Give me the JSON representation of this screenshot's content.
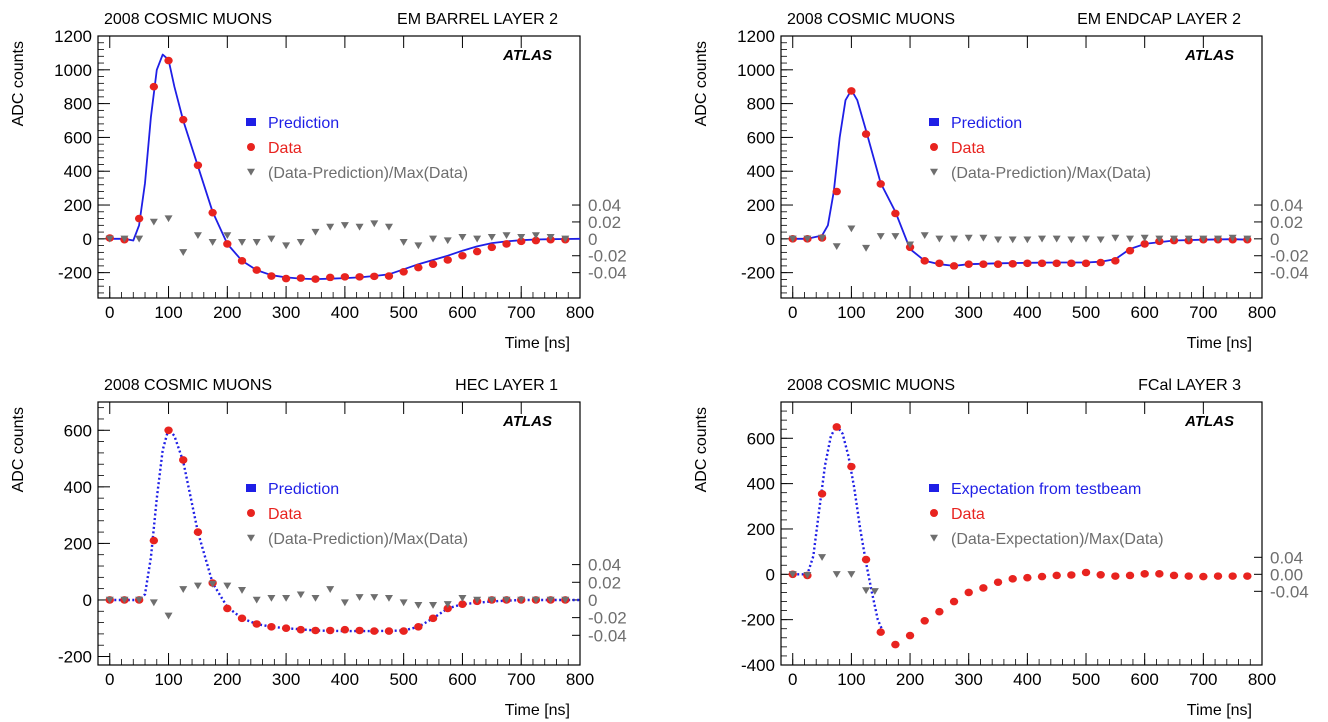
{
  "colors": {
    "prediction": "#1f1fe6",
    "data": "#e8231f",
    "residual": "#6e6e6e",
    "axis": "#000000"
  },
  "chart_data": [
    {
      "type": "scatter",
      "header_left": "2008 COSMIC MUONS",
      "header_right": "EM BARREL LAYER 2",
      "watermark": "ATLAS",
      "xlabel": "Time [ns]",
      "ylabel": "ADC counts",
      "xlim": [
        -20,
        800
      ],
      "ylim": [
        -350,
        1200
      ],
      "x_ticks": [
        0,
        100,
        200,
        300,
        400,
        500,
        600,
        700,
        800
      ],
      "y_ticks": [
        -200,
        0,
        200,
        400,
        600,
        800,
        1000,
        1200
      ],
      "right_ticks": [
        "0.04",
        "0.02",
        "0",
        "-0.02",
        "-0.04"
      ],
      "right_tick_values": [
        0.04,
        0.02,
        0,
        -0.02,
        -0.04
      ],
      "residual_scale": 0.04,
      "residual_zero_adc": 0,
      "residual_unit_adc": 200,
      "legend": [
        {
          "label": "Prediction",
          "marker": "square",
          "color": "#1f1fe6"
        },
        {
          "label": "Data",
          "marker": "circle",
          "color": "#e8231f"
        },
        {
          "label": "(Data-Prediction)/Max(Data)",
          "marker": "triangle",
          "color": "#6e6e6e"
        }
      ],
      "series": [
        {
          "name": "Prediction",
          "kind": "line",
          "x": [
            0,
            25,
            40,
            50,
            60,
            70,
            80,
            90,
            100,
            110,
            125,
            150,
            175,
            200,
            225,
            250,
            275,
            300,
            325,
            350,
            375,
            400,
            425,
            450,
            475,
            500,
            525,
            550,
            575,
            600,
            625,
            650,
            675,
            700,
            725,
            750,
            775,
            800
          ],
          "y": [
            0,
            0,
            -10,
            80,
            330,
            720,
            1000,
            1090,
            1060,
            900,
            700,
            430,
            160,
            -30,
            -130,
            -185,
            -215,
            -228,
            -235,
            -238,
            -236,
            -232,
            -228,
            -220,
            -210,
            -180,
            -150,
            -125,
            -100,
            -70,
            -45,
            -25,
            -15,
            -8,
            -4,
            -2,
            -1,
            0
          ]
        },
        {
          "name": "Data",
          "kind": "points",
          "x": [
            0,
            25,
            50,
            75,
            100,
            125,
            150,
            175,
            200,
            225,
            250,
            275,
            300,
            325,
            350,
            375,
            400,
            425,
            450,
            475,
            500,
            525,
            550,
            575,
            600,
            625,
            650,
            675,
            700,
            725,
            750,
            775
          ],
          "y": [
            5,
            -5,
            120,
            900,
            1055,
            705,
            435,
            155,
            -30,
            -130,
            -185,
            -220,
            -235,
            -232,
            -238,
            -228,
            -225,
            -225,
            -222,
            -220,
            -195,
            -170,
            -150,
            -125,
            -100,
            -75,
            -50,
            -30,
            -15,
            -10,
            -5,
            -5
          ]
        },
        {
          "name": "(Data-Prediction)/Max(Data)",
          "kind": "residual",
          "x": [
            0,
            25,
            50,
            75,
            100,
            125,
            150,
            175,
            200,
            225,
            250,
            275,
            300,
            325,
            350,
            375,
            400,
            425,
            450,
            475,
            500,
            525,
            550,
            575,
            600,
            625,
            650,
            675,
            700,
            725,
            750,
            775
          ],
          "y": [
            0.0,
            0.0,
            0.0,
            0.02,
            0.024,
            -0.016,
            0.004,
            -0.004,
            0.004,
            -0.004,
            -0.004,
            0.0,
            -0.008,
            -0.004,
            0.008,
            0.014,
            0.016,
            0.014,
            0.018,
            0.014,
            -0.004,
            -0.008,
            0.0,
            -0.002,
            0.002,
            0.0,
            0.002,
            0.004,
            0.002,
            0.004,
            0.002,
            0.0
          ]
        }
      ]
    },
    {
      "type": "scatter",
      "header_left": "2008 COSMIC MUONS",
      "header_right": "EM ENDCAP LAYER 2",
      "watermark": "ATLAS",
      "xlabel": "Time [ns]",
      "ylabel": "ADC counts",
      "xlim": [
        -20,
        800
      ],
      "ylim": [
        -350,
        1200
      ],
      "x_ticks": [
        0,
        100,
        200,
        300,
        400,
        500,
        600,
        700,
        800
      ],
      "y_ticks": [
        -200,
        0,
        200,
        400,
        600,
        800,
        1000,
        1200
      ],
      "right_ticks": [
        "0.04",
        "0.02",
        "0",
        "-0.02",
        "-0.04"
      ],
      "right_tick_values": [
        0.04,
        0.02,
        0,
        -0.02,
        -0.04
      ],
      "residual_scale": 0.04,
      "residual_zero_adc": 0,
      "residual_unit_adc": 200,
      "legend": [
        {
          "label": "Prediction",
          "marker": "square",
          "color": "#1f1fe6"
        },
        {
          "label": "Data",
          "marker": "circle",
          "color": "#e8231f"
        },
        {
          "label": "(Data-Prediction)/Max(Data)",
          "marker": "triangle",
          "color": "#6e6e6e"
        }
      ],
      "series": [
        {
          "name": "Prediction",
          "kind": "line",
          "x": [
            0,
            25,
            50,
            60,
            70,
            80,
            90,
            100,
            110,
            125,
            150,
            175,
            200,
            225,
            250,
            275,
            300,
            350,
            400,
            450,
            500,
            525,
            550,
            575,
            600,
            650,
            700,
            750,
            775
          ],
          "y": [
            0,
            0,
            20,
            80,
            280,
            600,
            820,
            880,
            820,
            640,
            330,
            160,
            -60,
            -130,
            -150,
            -160,
            -150,
            -145,
            -142,
            -140,
            -140,
            -135,
            -120,
            -60,
            -30,
            -10,
            -5,
            -2,
            -5
          ]
        },
        {
          "name": "Data",
          "kind": "points",
          "x": [
            0,
            25,
            50,
            75,
            100,
            125,
            150,
            175,
            200,
            225,
            250,
            275,
            300,
            325,
            350,
            375,
            400,
            425,
            450,
            475,
            500,
            525,
            550,
            575,
            600,
            625,
            650,
            675,
            700,
            725,
            750,
            775
          ],
          "y": [
            0,
            0,
            5,
            280,
            875,
            620,
            325,
            150,
            -50,
            -130,
            -145,
            -160,
            -150,
            -150,
            -150,
            -148,
            -145,
            -145,
            -145,
            -145,
            -145,
            -140,
            -130,
            -70,
            -30,
            -15,
            -10,
            -10,
            -5,
            -5,
            -5,
            -5
          ]
        },
        {
          "name": "(Data-Prediction)/Max(Data)",
          "kind": "residual",
          "x": [
            0,
            25,
            50,
            75,
            100,
            125,
            150,
            175,
            200,
            225,
            250,
            275,
            300,
            325,
            350,
            375,
            400,
            425,
            450,
            475,
            500,
            525,
            550,
            575,
            600,
            625,
            650,
            675,
            700,
            725,
            750,
            775
          ],
          "y": [
            0.0,
            0.0,
            0.001,
            -0.009,
            0.012,
            -0.011,
            0.003,
            0.003,
            -0.007,
            0.004,
            0.0,
            0.0,
            0.001,
            0.001,
            -0.001,
            -0.001,
            -0.001,
            0.0,
            0.0,
            -0.001,
            0.0,
            -0.001,
            0.001,
            0.0,
            0.001,
            0.0,
            0.0,
            0.0,
            0.0,
            0.0,
            0.001,
            0.0
          ]
        }
      ]
    },
    {
      "type": "scatter",
      "header_left": "2008 COSMIC MUONS",
      "header_right": "HEC LAYER 1",
      "watermark": "ATLAS",
      "xlabel": "Time [ns]",
      "ylabel": "ADC counts",
      "xlim": [
        -20,
        800
      ],
      "ylim": [
        -230,
        700
      ],
      "x_ticks": [
        0,
        100,
        200,
        300,
        400,
        500,
        600,
        700,
        800
      ],
      "y_ticks": [
        -200,
        0,
        200,
        400,
        600
      ],
      "right_ticks": [
        "0.04",
        "0.02",
        "0",
        "-0.02",
        "-0.04"
      ],
      "right_tick_values": [
        0.04,
        0.02,
        0,
        -0.02,
        -0.04
      ],
      "residual_scale": 0.04,
      "residual_zero_adc": 0,
      "residual_unit_adc": 125,
      "legend": [
        {
          "label": "Prediction",
          "marker": "square",
          "color": "#1f1fe6"
        },
        {
          "label": "Data",
          "marker": "circle",
          "color": "#e8231f"
        },
        {
          "label": "(Data-Prediction)/Max(Data)",
          "marker": "triangle",
          "color": "#6e6e6e"
        }
      ],
      "series": [
        {
          "name": "Prediction",
          "kind": "dotted-line",
          "x": [
            0,
            25,
            50,
            60,
            70,
            80,
            90,
            100,
            110,
            125,
            150,
            175,
            200,
            225,
            250,
            275,
            300,
            350,
            400,
            450,
            500,
            525,
            550,
            575,
            600,
            650,
            700,
            750,
            800
          ],
          "y": [
            0,
            0,
            0,
            20,
            150,
            360,
            530,
            605,
            580,
            490,
            240,
            60,
            -25,
            -65,
            -85,
            -95,
            -100,
            -108,
            -110,
            -110,
            -108,
            -95,
            -65,
            -30,
            -15,
            -5,
            0,
            0,
            0
          ]
        },
        {
          "name": "Data",
          "kind": "points",
          "x": [
            0,
            25,
            50,
            75,
            100,
            125,
            150,
            175,
            200,
            225,
            250,
            275,
            300,
            325,
            350,
            375,
            400,
            425,
            450,
            475,
            500,
            525,
            550,
            575,
            600,
            625,
            650,
            675,
            700,
            725,
            750,
            775
          ],
          "y": [
            0,
            0,
            0,
            210,
            600,
            495,
            240,
            60,
            -30,
            -65,
            -85,
            -95,
            -100,
            -105,
            -108,
            -108,
            -105,
            -108,
            -110,
            -110,
            -110,
            -95,
            -65,
            -30,
            -15,
            -5,
            0,
            0,
            0,
            0,
            0,
            0
          ]
        },
        {
          "name": "(Data-Prediction)/Max(Data)",
          "kind": "residual",
          "x": [
            0,
            25,
            50,
            75,
            100,
            125,
            150,
            175,
            200,
            225,
            250,
            275,
            300,
            325,
            350,
            375,
            400,
            425,
            450,
            475,
            500,
            525,
            550,
            575,
            600,
            625,
            650,
            675,
            700,
            725,
            750,
            775
          ],
          "y": [
            0.0,
            0.0,
            0.0,
            -0.003,
            -0.018,
            0.012,
            0.016,
            0.018,
            0.016,
            0.011,
            0.0,
            0.002,
            0.002,
            0.006,
            0.002,
            0.012,
            -0.003,
            0.003,
            0.003,
            0.002,
            -0.003,
            -0.006,
            -0.006,
            -0.005,
            0.002,
            0.0,
            0.0,
            0.0,
            0.0,
            0.0,
            0.0,
            0.0
          ]
        }
      ]
    },
    {
      "type": "scatter",
      "header_left": "2008 COSMIC MUONS",
      "header_right": "FCal LAYER 3",
      "watermark": "ATLAS",
      "xlabel": "Time [ns]",
      "ylabel": "ADC counts",
      "xlim": [
        -20,
        800
      ],
      "ylim": [
        -400,
        760
      ],
      "x_ticks": [
        0,
        100,
        200,
        300,
        400,
        500,
        600,
        700,
        800
      ],
      "y_ticks": [
        -400,
        -200,
        0,
        200,
        400,
        600
      ],
      "right_ticks": [
        "0.04",
        "0.00",
        "-0.04"
      ],
      "right_tick_values": [
        0.04,
        0,
        -0.04
      ],
      "residual_scale": 0.04,
      "residual_zero_adc": 0,
      "residual_unit_adc": 75,
      "legend": [
        {
          "label": "Expectation from testbeam",
          "marker": "square",
          "color": "#1f1fe6"
        },
        {
          "label": "Data",
          "marker": "circle",
          "color": "#e8231f"
        },
        {
          "label": "(Data-Expectation)/Max(Data)",
          "marker": "triangle",
          "color": "#6e6e6e"
        }
      ],
      "series": [
        {
          "name": "Expectation from testbeam",
          "kind": "dotted-line",
          "x": [
            0,
            25,
            35,
            45,
            55,
            65,
            75,
            85,
            95,
            105,
            115,
            125,
            135,
            145,
            155
          ],
          "y": [
            0,
            0,
            80,
            280,
            480,
            610,
            655,
            620,
            520,
            380,
            200,
            50,
            -80,
            -200,
            -260
          ]
        },
        {
          "name": "Data",
          "kind": "points",
          "x": [
            0,
            25,
            50,
            75,
            100,
            125,
            150,
            175,
            200,
            225,
            250,
            275,
            300,
            325,
            350,
            375,
            400,
            425,
            450,
            475,
            500,
            525,
            550,
            575,
            600,
            625,
            650,
            675,
            700,
            725,
            750,
            775
          ],
          "y": [
            0,
            -5,
            355,
            650,
            475,
            65,
            -255,
            -310,
            -270,
            -205,
            -165,
            -120,
            -80,
            -60,
            -35,
            -20,
            -15,
            -10,
            -5,
            -3,
            8,
            -2,
            -8,
            -5,
            2,
            2,
            -5,
            -8,
            -10,
            -8,
            -8,
            -8
          ]
        },
        {
          "name": "(Data-Expectation)/Max(Data)",
          "kind": "residual",
          "x": [
            0,
            25,
            50,
            75,
            100,
            125,
            140
          ],
          "y": [
            0.0,
            -0.002,
            0.04,
            0.0,
            0.0,
            -0.038,
            -0.04
          ]
        }
      ]
    }
  ]
}
